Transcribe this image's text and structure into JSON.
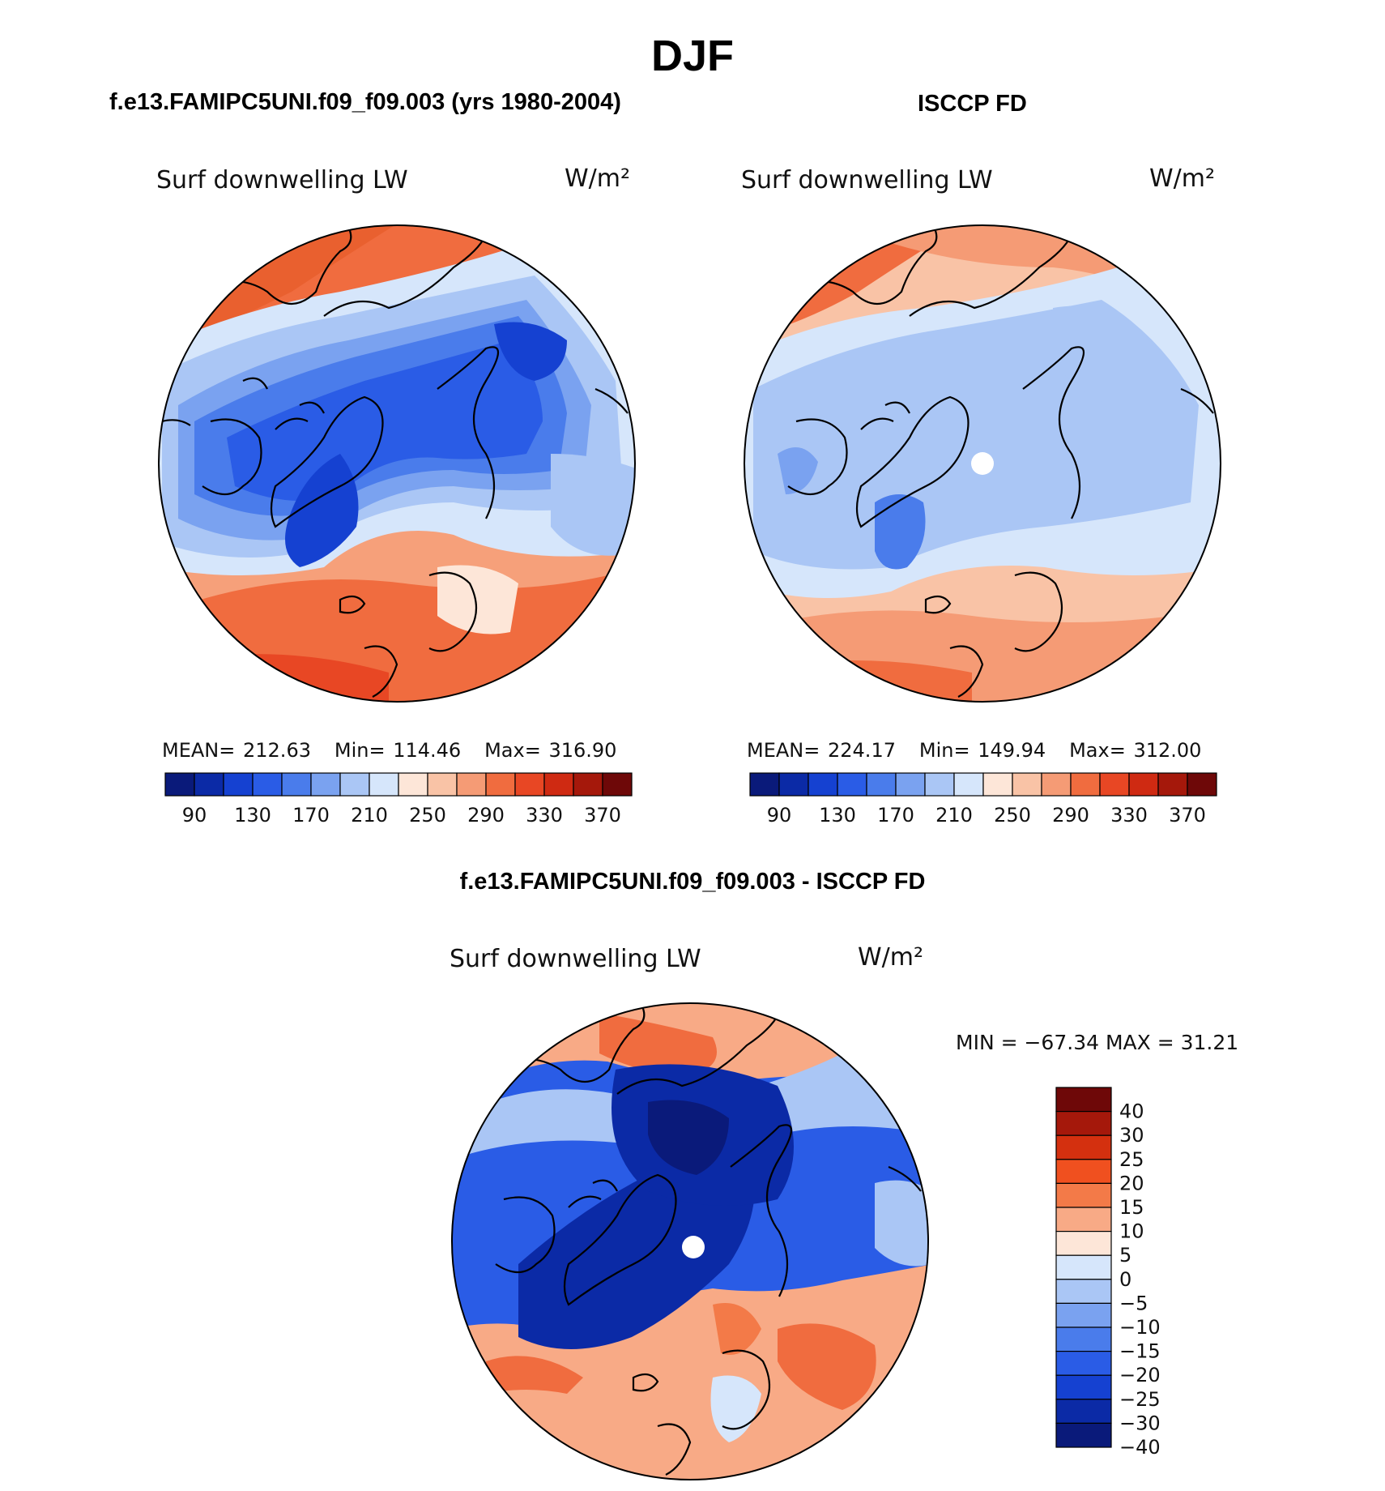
{
  "page_title": "DJF",
  "panels": [
    {
      "title": "f.e13.FAMIPC5UNI.f09_f09.003 (yrs 1980-2004)",
      "variable": "Surf downwelling LW",
      "units": "W/m²",
      "stats": {
        "mean_label": "MEAN=",
        "mean": "212.63",
        "min_label": "Min=",
        "min": "114.46",
        "max_label": "Max=",
        "max": "316.90"
      }
    },
    {
      "title": "ISCCP FD",
      "variable": "Surf downwelling LW",
      "units": "W/m²",
      "stats": {
        "mean_label": "MEAN=",
        "mean": "224.17",
        "min_label": "Min=",
        "min": "149.94",
        "max_label": "Max=",
        "max": "312.00"
      }
    }
  ],
  "diff_panel": {
    "title": "f.e13.FAMIPC5UNI.f09_f09.003 - ISCCP FD",
    "variable": "Surf downwelling LW",
    "units": "W/m²",
    "minmax_text": "MIN = −67.34 MAX =   31.21"
  },
  "colorbar_abs": {
    "colors": [
      "#0a1a7a",
      "#0b2aa6",
      "#1541d1",
      "#2a5ce6",
      "#4a7ceb",
      "#7aa2f0",
      "#aac6f5",
      "#d6e6fb",
      "#fde6d8",
      "#f9c3a6",
      "#f59b75",
      "#f06c3f",
      "#e84724",
      "#cf2a12",
      "#a5180b",
      "#6e0808"
    ],
    "labels": [
      "90",
      "130",
      "170",
      "210",
      "250",
      "290",
      "330",
      "370"
    ]
  },
  "colorbar_diff": {
    "colors": [
      "#6e0808",
      "#a5180b",
      "#d4300f",
      "#f0501f",
      "#f37a48",
      "#f8aa86",
      "#fde6d8",
      "#d6e6fb",
      "#aac6f5",
      "#7aa2f0",
      "#4a7ceb",
      "#2a5ce6",
      "#1541d1",
      "#0b2aa6",
      "#0a1a7a"
    ],
    "labels": [
      "40",
      "30",
      "25",
      "20",
      "15",
      "10",
      "5",
      "0",
      "−5",
      "−10",
      "−15",
      "−20",
      "−25",
      "−30",
      "−40"
    ]
  }
}
